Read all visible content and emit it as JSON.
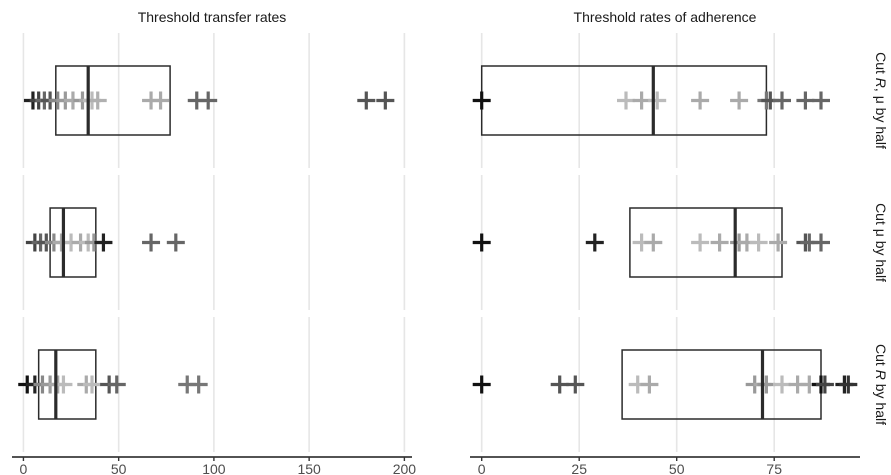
{
  "chart_data": {
    "type": "boxplot-faceted",
    "columns": [
      {
        "title": "Threshold transfer rates",
        "ticks": [
          0,
          50,
          100,
          150,
          200
        ],
        "xlim": [
          -6,
          204
        ]
      },
      {
        "title": "Threshold rates of adherence",
        "ticks": [
          0,
          25,
          50,
          75
        ],
        "xlim": [
          -3,
          97
        ]
      }
    ],
    "rows": [
      {
        "label": "Cut R, μ by half",
        "label_parts": [
          {
            "text": "Cut ",
            "italic": false
          },
          {
            "text": "R",
            "italic": true
          },
          {
            "text": ", μ by half",
            "italic": false
          }
        ],
        "boxes": [
          {
            "q1": 17,
            "median": 34,
            "q3": 77
          },
          {
            "q1": 0,
            "median": 44,
            "q3": 73
          }
        ],
        "points": [
          [
            {
              "x": 5,
              "shade": "#222222"
            },
            {
              "x": 8,
              "shade": "#444444"
            },
            {
              "x": 11,
              "shade": "#666666"
            },
            {
              "x": 14,
              "shade": "#555555"
            },
            {
              "x": 18,
              "shade": "#888888"
            },
            {
              "x": 22,
              "shade": "#9a9a9a"
            },
            {
              "x": 26,
              "shade": "#aaaaaa"
            },
            {
              "x": 31,
              "shade": "#999999"
            },
            {
              "x": 34,
              "shade": "#aaaaaa"
            },
            {
              "x": 36,
              "shade": "#bbbbbb"
            },
            {
              "x": 39,
              "shade": "#b0b0b0"
            },
            {
              "x": 67,
              "shade": "#aaaaaa"
            },
            {
              "x": 72,
              "shade": "#aaaaaa"
            },
            {
              "x": 91,
              "shade": "#666666"
            },
            {
              "x": 97,
              "shade": "#666666"
            },
            {
              "x": 180,
              "shade": "#555555"
            },
            {
              "x": 190,
              "shade": "#555555"
            }
          ],
          [
            {
              "x": 0,
              "shade": "#111111"
            },
            {
              "x": 37,
              "shade": "#bbbbbb"
            },
            {
              "x": 41,
              "shade": "#aaaaaa"
            },
            {
              "x": 45,
              "shade": "#bbbbbb"
            },
            {
              "x": 56,
              "shade": "#aaaaaa"
            },
            {
              "x": 66,
              "shade": "#aaaaaa"
            },
            {
              "x": 73,
              "shade": "#777777"
            },
            {
              "x": 74,
              "shade": "#555555"
            },
            {
              "x": 77,
              "shade": "#666666"
            },
            {
              "x": 83,
              "shade": "#666666"
            },
            {
              "x": 87,
              "shade": "#666666"
            }
          ]
        ]
      },
      {
        "label": "Cut μ by half",
        "label_parts": [
          {
            "text": "Cut μ by half",
            "italic": false
          }
        ],
        "boxes": [
          {
            "q1": 14,
            "median": 21,
            "q3": 38
          },
          {
            "q1": 38,
            "median": 65,
            "q3": 77
          }
        ],
        "points": [
          [
            {
              "x": 6,
              "shade": "#444444"
            },
            {
              "x": 9,
              "shade": "#666666"
            },
            {
              "x": 12,
              "shade": "#555555"
            },
            {
              "x": 16,
              "shade": "#888888"
            },
            {
              "x": 20,
              "shade": "#aaaaaa"
            },
            {
              "x": 25,
              "shade": "#bbbbbb"
            },
            {
              "x": 30,
              "shade": "#aaaaaa"
            },
            {
              "x": 34,
              "shade": "#bbbbbb"
            },
            {
              "x": 37,
              "shade": "#999999"
            },
            {
              "x": 42,
              "shade": "#222222"
            },
            {
              "x": 67,
              "shade": "#666666"
            },
            {
              "x": 80,
              "shade": "#666666"
            }
          ],
          [
            {
              "x": 0,
              "shade": "#111111"
            },
            {
              "x": 29,
              "shade": "#222222"
            },
            {
              "x": 41,
              "shade": "#bbbbbb"
            },
            {
              "x": 44,
              "shade": "#aaaaaa"
            },
            {
              "x": 56,
              "shade": "#bbbbbb"
            },
            {
              "x": 61,
              "shade": "#aaaaaa"
            },
            {
              "x": 66,
              "shade": "#999999"
            },
            {
              "x": 68,
              "shade": "#aaaaaa"
            },
            {
              "x": 71,
              "shade": "#bbbbbb"
            },
            {
              "x": 76,
              "shade": "#aaaaaa"
            },
            {
              "x": 83,
              "shade": "#555555"
            },
            {
              "x": 84,
              "shade": "#666666"
            },
            {
              "x": 87,
              "shade": "#666666"
            }
          ]
        ]
      },
      {
        "label": "Cut R by half",
        "label_parts": [
          {
            "text": "Cut ",
            "italic": false
          },
          {
            "text": "R",
            "italic": true
          },
          {
            "text": " by half",
            "italic": false
          }
        ],
        "boxes": [
          {
            "q1": 8,
            "median": 17,
            "q3": 38
          },
          {
            "q1": 36,
            "median": 72,
            "q3": 87
          }
        ],
        "points": [
          [
            {
              "x": 2,
              "shade": "#111111"
            },
            {
              "x": 6,
              "shade": "#222222"
            },
            {
              "x": 10,
              "shade": "#888888"
            },
            {
              "x": 14,
              "shade": "#999999"
            },
            {
              "x": 18,
              "shade": "#aaaaaa"
            },
            {
              "x": 21,
              "shade": "#bbbbbb"
            },
            {
              "x": 33,
              "shade": "#aaaaaa"
            },
            {
              "x": 36,
              "shade": "#bbbbbb"
            },
            {
              "x": 45,
              "shade": "#555555"
            },
            {
              "x": 49,
              "shade": "#666666"
            },
            {
              "x": 86,
              "shade": "#777777"
            },
            {
              "x": 92,
              "shade": "#777777"
            }
          ],
          [
            {
              "x": 0,
              "shade": "#111111"
            },
            {
              "x": 20,
              "shade": "#555555"
            },
            {
              "x": 24,
              "shade": "#555555"
            },
            {
              "x": 40,
              "shade": "#bbbbbb"
            },
            {
              "x": 43,
              "shade": "#aaaaaa"
            },
            {
              "x": 70,
              "shade": "#999999"
            },
            {
              "x": 72,
              "shade": "#aaaaaa"
            },
            {
              "x": 73,
              "shade": "#999999"
            },
            {
              "x": 77,
              "shade": "#bbbbbb"
            },
            {
              "x": 81,
              "shade": "#aaaaaa"
            },
            {
              "x": 84,
              "shade": "#aaaaaa"
            },
            {
              "x": 87,
              "shade": "#111111"
            },
            {
              "x": 88,
              "shade": "#444444"
            },
            {
              "x": 93,
              "shade": "#222222"
            },
            {
              "x": 94,
              "shade": "#333333"
            }
          ]
        ]
      }
    ],
    "grid": true,
    "legend": "none"
  }
}
